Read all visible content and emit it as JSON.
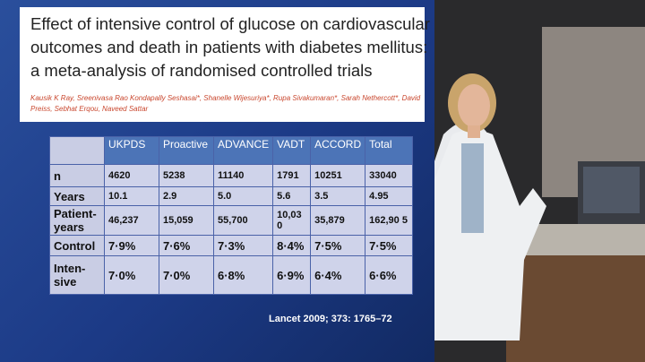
{
  "slide": {
    "title_lines": [
      "Effect of intensive control of glucose on cardiovascular",
      "outcomes and death in patients with diabetes mellitus:",
      "a meta-analysis of randomised controlled trials"
    ],
    "authors": "Kausik K Ray, Sreenivasa Rao Kondapally Seshasai*, Shanelle Wijesuriya*, Rupa Sivakumaran*, Sarah Nethercott*, David Preiss, Sebhat Erqou, Naveed Sattar",
    "table": {
      "header": [
        "UKPDS",
        "Proactive",
        "ADVANCE",
        "VADT",
        "ACCORD",
        "Total"
      ],
      "rows": [
        {
          "label": [
            "n"
          ],
          "cells": [
            "4620",
            "5238",
            "11140",
            "1791",
            "10251",
            "33040"
          ]
        },
        {
          "label": [
            "Years"
          ],
          "cells": [
            "10.1",
            "2.9",
            "5.0",
            "5.6",
            "3.5",
            "4.95"
          ]
        },
        {
          "label": [
            "Patient-",
            "years"
          ],
          "cells": [
            "46,237",
            "15,059",
            "55,700",
            "10,03 0",
            "35,879",
            "162,90 5"
          ]
        },
        {
          "label": [
            "Control"
          ],
          "cells": [
            "7·9%",
            "7·6%",
            "7·3%",
            "8·4%",
            "7·5%",
            "7·5%"
          ]
        },
        {
          "label": [
            "Inten-",
            "sive"
          ],
          "cells": [
            "7·0%",
            "7·0%",
            "6·8%",
            "6·9%",
            "6·4%",
            "6·6%"
          ]
        }
      ]
    },
    "citation": "Lancet 2009; 373: 1765–72"
  }
}
